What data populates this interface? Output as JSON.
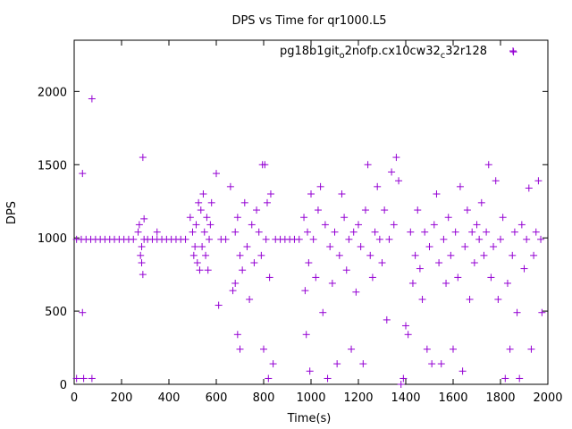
{
  "chart_data": {
    "type": "scatter",
    "title": "DPS vs Time for qr1000.L5",
    "xlabel": "Time(s)",
    "ylabel": "DPS",
    "xlim": [
      0,
      2000
    ],
    "ylim": [
      0,
      2350
    ],
    "xticks": [
      "0",
      "200",
      "400",
      "600",
      "800",
      "1000",
      "1200",
      "1400",
      "1600",
      "1800",
      "2000"
    ],
    "yticks": [
      "0",
      "500",
      "1000",
      "1500",
      "2000"
    ],
    "grid": false,
    "legend_position": "top-right",
    "series": [
      {
        "name": "pg18b1git",
        "name_sub1": "o",
        "name_mid": "2nofp.cx10cw32",
        "name_sub2": "c",
        "name_end": "32r128",
        "color": "#9400d3",
        "marker": "plus",
        "points": [
          [
            10,
            40
          ],
          [
            40,
            40
          ],
          [
            75,
            40
          ],
          [
            35,
            490
          ],
          [
            35,
            1440
          ],
          [
            75,
            1950
          ],
          [
            10,
            990
          ],
          [
            30,
            990
          ],
          [
            50,
            990
          ],
          [
            70,
            990
          ],
          [
            90,
            990
          ],
          [
            110,
            990
          ],
          [
            130,
            990
          ],
          [
            150,
            990
          ],
          [
            170,
            990
          ],
          [
            190,
            990
          ],
          [
            210,
            990
          ],
          [
            230,
            990
          ],
          [
            250,
            990
          ],
          [
            270,
            1040
          ],
          [
            275,
            1090
          ],
          [
            280,
            880
          ],
          [
            285,
            830
          ],
          [
            290,
            750
          ],
          [
            295,
            1130
          ],
          [
            285,
            940
          ],
          [
            295,
            990
          ],
          [
            290,
            1550
          ],
          [
            350,
            1040
          ],
          [
            310,
            990
          ],
          [
            330,
            990
          ],
          [
            350,
            990
          ],
          [
            370,
            990
          ],
          [
            390,
            990
          ],
          [
            410,
            990
          ],
          [
            430,
            990
          ],
          [
            450,
            990
          ],
          [
            470,
            990
          ],
          [
            490,
            1140
          ],
          [
            500,
            1040
          ],
          [
            505,
            880
          ],
          [
            510,
            940
          ],
          [
            515,
            1090
          ],
          [
            520,
            830
          ],
          [
            525,
            1240
          ],
          [
            530,
            780
          ],
          [
            535,
            1190
          ],
          [
            540,
            940
          ],
          [
            545,
            1300
          ],
          [
            550,
            1040
          ],
          [
            555,
            880
          ],
          [
            560,
            1140
          ],
          [
            565,
            780
          ],
          [
            570,
            990
          ],
          [
            575,
            1090
          ],
          [
            580,
            1240
          ],
          [
            600,
            1440
          ],
          [
            610,
            540
          ],
          [
            620,
            990
          ],
          [
            640,
            990
          ],
          [
            660,
            1350
          ],
          [
            670,
            640
          ],
          [
            680,
            690
          ],
          [
            690,
            340
          ],
          [
            700,
            240
          ],
          [
            680,
            1040
          ],
          [
            690,
            1140
          ],
          [
            700,
            880
          ],
          [
            710,
            780
          ],
          [
            720,
            1240
          ],
          [
            730,
            940
          ],
          [
            740,
            580
          ],
          [
            750,
            1090
          ],
          [
            760,
            830
          ],
          [
            770,
            1190
          ],
          [
            780,
            1040
          ],
          [
            790,
            880
          ],
          [
            795,
            1500
          ],
          [
            800,
            240
          ],
          [
            805,
            1500
          ],
          [
            810,
            990
          ],
          [
            815,
            1240
          ],
          [
            820,
            40
          ],
          [
            825,
            730
          ],
          [
            830,
            1300
          ],
          [
            840,
            140
          ],
          [
            850,
            990
          ],
          [
            870,
            990
          ],
          [
            890,
            990
          ],
          [
            910,
            990
          ],
          [
            930,
            990
          ],
          [
            950,
            990
          ],
          [
            970,
            1140
          ],
          [
            975,
            640
          ],
          [
            980,
            340
          ],
          [
            985,
            1040
          ],
          [
            990,
            830
          ],
          [
            995,
            90
          ],
          [
            1000,
            1300
          ],
          [
            1010,
            990
          ],
          [
            1020,
            730
          ],
          [
            1030,
            1190
          ],
          [
            1040,
            1350
          ],
          [
            1050,
            490
          ],
          [
            1060,
            1090
          ],
          [
            1070,
            40
          ],
          [
            1080,
            940
          ],
          [
            1090,
            690
          ],
          [
            1100,
            1040
          ],
          [
            1110,
            140
          ],
          [
            1120,
            880
          ],
          [
            1130,
            1300
          ],
          [
            1140,
            1140
          ],
          [
            1150,
            780
          ],
          [
            1160,
            990
          ],
          [
            1170,
            240
          ],
          [
            1180,
            1040
          ],
          [
            1190,
            630
          ],
          [
            1200,
            1090
          ],
          [
            1210,
            940
          ],
          [
            1220,
            140
          ],
          [
            1230,
            1190
          ],
          [
            1240,
            1500
          ],
          [
            1250,
            880
          ],
          [
            1260,
            730
          ],
          [
            1270,
            1040
          ],
          [
            1280,
            1350
          ],
          [
            1290,
            990
          ],
          [
            1300,
            830
          ],
          [
            1310,
            1190
          ],
          [
            1320,
            440
          ],
          [
            1330,
            990
          ],
          [
            1340,
            1450
          ],
          [
            1350,
            1090
          ],
          [
            1360,
            1550
          ],
          [
            1370,
            1390
          ],
          [
            1380,
            0
          ],
          [
            1390,
            40
          ],
          [
            1400,
            400
          ],
          [
            1410,
            340
          ],
          [
            1420,
            1040
          ],
          [
            1430,
            690
          ],
          [
            1440,
            880
          ],
          [
            1450,
            1190
          ],
          [
            1460,
            790
          ],
          [
            1470,
            580
          ],
          [
            1480,
            1040
          ],
          [
            1490,
            240
          ],
          [
            1500,
            940
          ],
          [
            1510,
            140
          ],
          [
            1520,
            1090
          ],
          [
            1530,
            1300
          ],
          [
            1540,
            830
          ],
          [
            1550,
            140
          ],
          [
            1560,
            990
          ],
          [
            1570,
            690
          ],
          [
            1580,
            1140
          ],
          [
            1590,
            880
          ],
          [
            1600,
            240
          ],
          [
            1610,
            1040
          ],
          [
            1620,
            730
          ],
          [
            1630,
            1350
          ],
          [
            1640,
            90
          ],
          [
            1650,
            940
          ],
          [
            1660,
            1190
          ],
          [
            1670,
            580
          ],
          [
            1680,
            1040
          ],
          [
            1690,
            830
          ],
          [
            1700,
            1090
          ],
          [
            1710,
            990
          ],
          [
            1720,
            1240
          ],
          [
            1730,
            880
          ],
          [
            1740,
            1040
          ],
          [
            1750,
            1500
          ],
          [
            1760,
            730
          ],
          [
            1770,
            940
          ],
          [
            1780,
            1390
          ],
          [
            1790,
            580
          ],
          [
            1800,
            990
          ],
          [
            1810,
            1140
          ],
          [
            1820,
            40
          ],
          [
            1830,
            690
          ],
          [
            1840,
            240
          ],
          [
            1850,
            880
          ],
          [
            1855,
            2270
          ],
          [
            1860,
            1040
          ],
          [
            1870,
            490
          ],
          [
            1880,
            40
          ],
          [
            1890,
            1090
          ],
          [
            1900,
            790
          ],
          [
            1910,
            990
          ],
          [
            1920,
            1340
          ],
          [
            1930,
            240
          ],
          [
            1940,
            880
          ],
          [
            1950,
            1040
          ],
          [
            1960,
            1390
          ],
          [
            1970,
            990
          ],
          [
            1975,
            490
          ]
        ]
      }
    ]
  }
}
